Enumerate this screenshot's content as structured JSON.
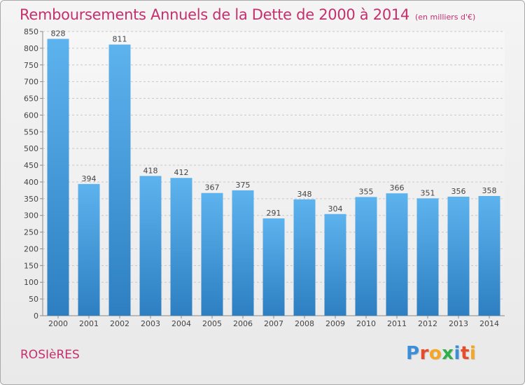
{
  "header": {
    "title": "Remboursements Annuels de la Dette de 2000 à 2014",
    "subtitle": "(en milliers d'€)"
  },
  "footer": {
    "commune": "ROSIèRES",
    "logo_text": "Proxiti"
  },
  "colors": {
    "title": "#c4306e",
    "bar_top": "#5db3ee",
    "bar_bottom": "#2d7fc1",
    "logo": [
      "#3a8fd8",
      "#e84b2b",
      "#f5a623",
      "#2eb04b",
      "#3a8fd8",
      "#e84b2b",
      "#f5a623"
    ]
  },
  "chart_data": {
    "type": "bar",
    "title": "Remboursements Annuels de la Dette de 2000 à 2014",
    "subtitle": "(en milliers d'€)",
    "categories": [
      "2000",
      "2001",
      "2002",
      "2003",
      "2004",
      "2005",
      "2006",
      "2007",
      "2008",
      "2009",
      "2010",
      "2011",
      "2012",
      "2013",
      "2014"
    ],
    "values": [
      828,
      394,
      811,
      418,
      412,
      367,
      375,
      291,
      348,
      304,
      355,
      366,
      351,
      356,
      358
    ],
    "ylim": [
      0,
      850
    ],
    "yticks": [
      0,
      50,
      100,
      150,
      200,
      250,
      300,
      350,
      400,
      450,
      500,
      550,
      600,
      650,
      700,
      750,
      800,
      850
    ],
    "grid": true,
    "data_labels": true
  }
}
